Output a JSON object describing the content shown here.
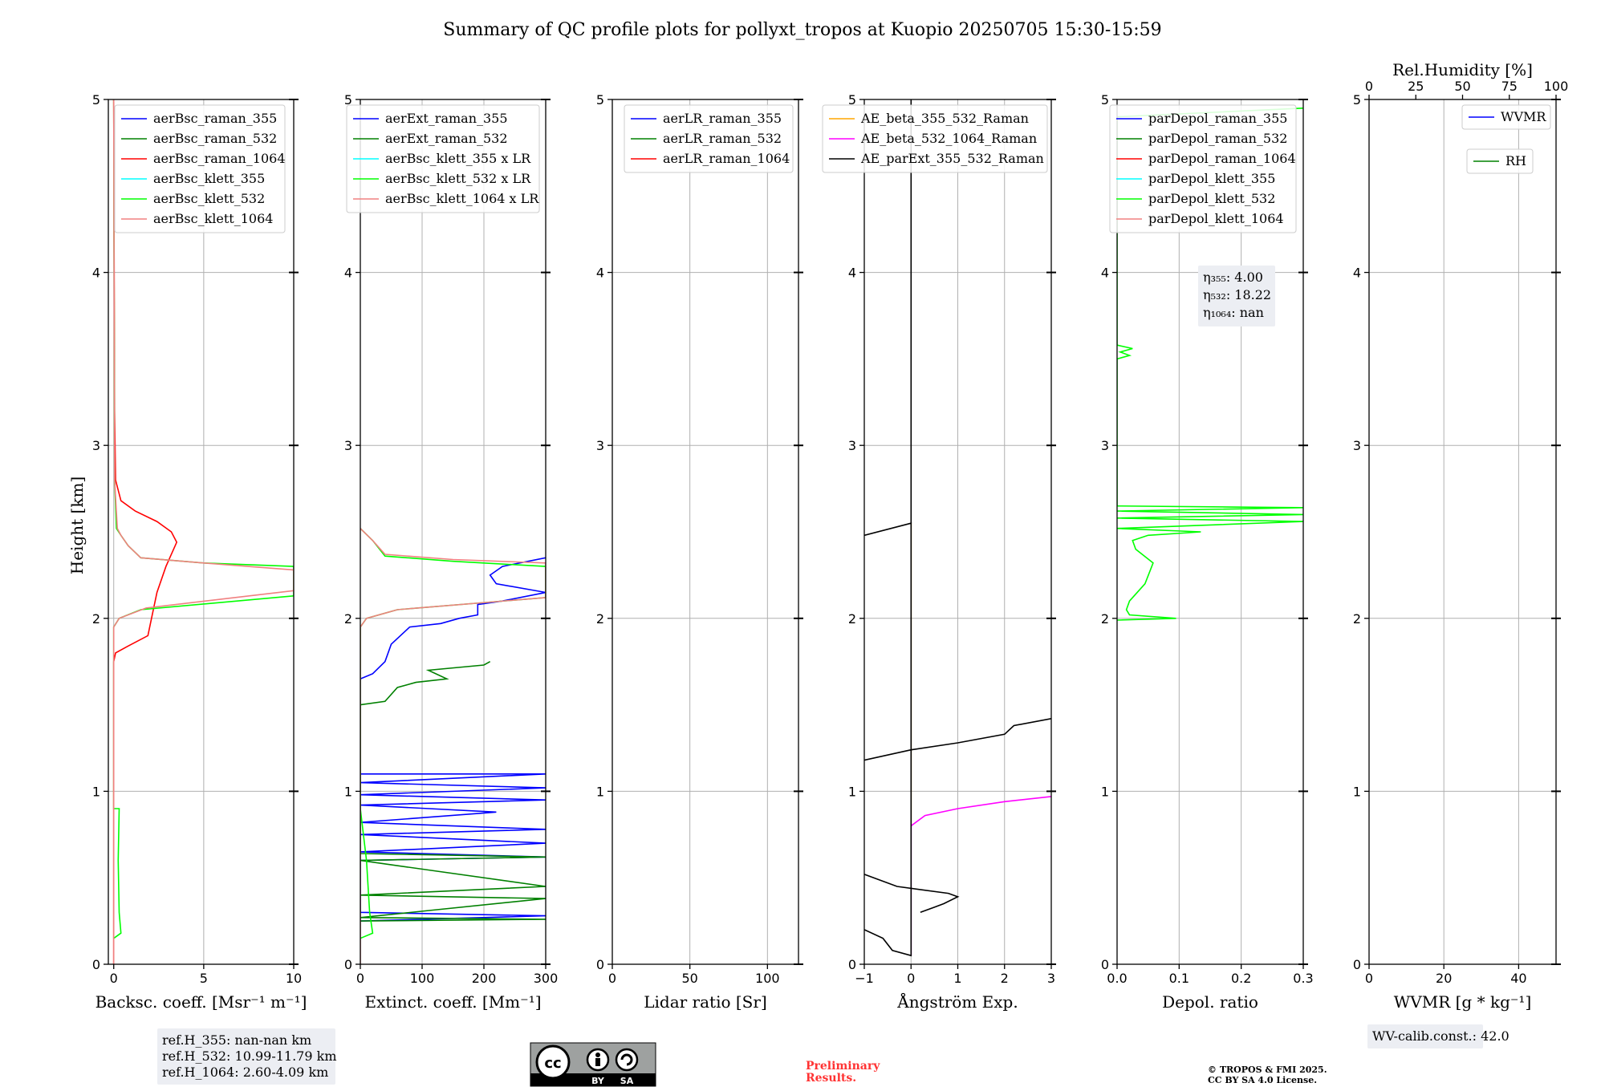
{
  "title": "Summary of QC profile plots for pollyxt_tropos at Kuopio 20250705 15:30-15:59",
  "ylabel": "Height [km]",
  "chart_data": [
    {
      "type": "line",
      "id": "bsc",
      "xlabel": "Backsc. coeff. [Msr⁻¹ m⁻¹]",
      "xlim": [
        -0.3,
        10
      ],
      "ylim": [
        0,
        5
      ],
      "xticks": [
        0,
        5,
        10
      ],
      "yticks": [
        0,
        1,
        2,
        3,
        4,
        5
      ],
      "legend": "top-right",
      "series": [
        {
          "name": "aerBsc_raman_355",
          "color": "#0000ff",
          "points": []
        },
        {
          "name": "aerBsc_raman_532",
          "color": "#008000",
          "points": []
        },
        {
          "name": "aerBsc_raman_1064",
          "color": "#ff0000",
          "points": [
            [
              0,
              0
            ],
            [
              0,
              1.75
            ],
            [
              0.1,
              1.8
            ],
            [
              0.8,
              1.84
            ],
            [
              1.9,
              1.9
            ],
            [
              2.1,
              2.0
            ],
            [
              2.4,
              2.15
            ],
            [
              2.9,
              2.3
            ],
            [
              3.5,
              2.44
            ],
            [
              3.2,
              2.5
            ],
            [
              2.4,
              2.56
            ],
            [
              1.2,
              2.62
            ],
            [
              0.4,
              2.68
            ],
            [
              0.1,
              2.8
            ],
            [
              0.05,
              3.2
            ],
            [
              0,
              5
            ]
          ]
        },
        {
          "name": "aerBsc_klett_355",
          "color": "#00ffff",
          "points": []
        },
        {
          "name": "aerBsc_klett_532",
          "color": "#00ff00",
          "points": [
            [
              0,
              0.15
            ],
            [
              0.4,
              0.18
            ],
            [
              0.3,
              0.3
            ],
            [
              0.25,
              0.6
            ],
            [
              0.3,
              0.9
            ],
            [
              0,
              0.9
            ],
            [
              0,
              1.95
            ],
            [
              0.3,
              2.0
            ],
            [
              1.5,
              2.05
            ],
            [
              10,
              2.13
            ],
            [
              10,
              2.3
            ],
            [
              5,
              2.32
            ],
            [
              1.5,
              2.35
            ],
            [
              0.8,
              2.42
            ],
            [
              0.4,
              2.48
            ],
            [
              0.15,
              2.52
            ],
            [
              0.05,
              2.8
            ],
            [
              0,
              5
            ]
          ]
        },
        {
          "name": "aerBsc_klett_1064",
          "color": "#f08080",
          "points": [
            [
              0,
              0
            ],
            [
              0,
              1.95
            ],
            [
              0.3,
              2.0
            ],
            [
              1.8,
              2.06
            ],
            [
              10,
              2.16
            ],
            [
              10,
              2.28
            ],
            [
              5,
              2.32
            ],
            [
              1.5,
              2.35
            ],
            [
              0.8,
              2.42
            ],
            [
              0.4,
              2.48
            ],
            [
              0.2,
              2.52
            ],
            [
              0.05,
              2.8
            ],
            [
              0,
              5
            ]
          ]
        }
      ],
      "info": [
        "ref.H_355: nan-nan km",
        "ref.H_532: 10.99-11.79 km",
        "ref.H_1064: 2.60-4.09 km"
      ]
    },
    {
      "type": "line",
      "id": "ext",
      "xlabel": "Extinct. coeff. [Mm⁻¹]",
      "xlim": [
        0,
        300
      ],
      "ylim": [
        0,
        5
      ],
      "xticks": [
        0,
        100,
        200,
        300
      ],
      "yticks": [
        0,
        1,
        2,
        3,
        4,
        5
      ],
      "legend": "top-right",
      "series": [
        {
          "name": "aerExt_raman_355",
          "color": "#0000ff",
          "points": [
            [
              0,
              0.25
            ],
            [
              300,
              0.28
            ],
            [
              0,
              0.3
            ],
            [
              0,
              0.6
            ],
            [
              300,
              0.62
            ],
            [
              0,
              0.65
            ],
            [
              300,
              0.7
            ],
            [
              0,
              0.75
            ],
            [
              300,
              0.78
            ],
            [
              0,
              0.82
            ],
            [
              220,
              0.88
            ],
            [
              0,
              0.92
            ],
            [
              300,
              0.95
            ],
            [
              0,
              0.98
            ],
            [
              300,
              1.02
            ],
            [
              0,
              1.05
            ],
            [
              300,
              1.1
            ],
            [
              0,
              1.1
            ],
            [
              0,
              1.65
            ],
            [
              20,
              1.68
            ],
            [
              40,
              1.75
            ],
            [
              50,
              1.85
            ],
            [
              80,
              1.95
            ],
            [
              130,
              1.97
            ],
            [
              160,
              2.0
            ],
            [
              190,
              2.02
            ],
            [
              190,
              2.08
            ],
            [
              230,
              2.1
            ],
            [
              300,
              2.15
            ],
            [
              220,
              2.2
            ],
            [
              210,
              2.25
            ],
            [
              230,
              2.3
            ],
            [
              300,
              2.35
            ]
          ]
        },
        {
          "name": "aerExt_raman_532",
          "color": "#008000",
          "points": [
            [
              0,
              0.25
            ],
            [
              300,
              0.26
            ],
            [
              0,
              0.27
            ],
            [
              300,
              0.38
            ],
            [
              0,
              0.4
            ],
            [
              300,
              0.45
            ],
            [
              0,
              0.6
            ],
            [
              300,
              0.62
            ],
            [
              0,
              0.64
            ],
            [
              0,
              1.5
            ],
            [
              40,
              1.52
            ],
            [
              60,
              1.6
            ],
            [
              90,
              1.63
            ],
            [
              140,
              1.65
            ],
            [
              110,
              1.7
            ],
            [
              200,
              1.73
            ],
            [
              210,
              1.75
            ]
          ]
        },
        {
          "name": "aerBsc_klett_355 x LR",
          "color": "#00ffff",
          "points": []
        },
        {
          "name": "aerBsc_klett_532 x LR",
          "color": "#00ff00",
          "points": [
            [
              0,
              0.15
            ],
            [
              20,
              0.18
            ],
            [
              15,
              0.3
            ],
            [
              10,
              0.6
            ],
            [
              0,
              0.9
            ],
            [
              0,
              1.95
            ],
            [
              10,
              2.0
            ],
            [
              60,
              2.05
            ],
            [
              300,
              2.12
            ],
            [
              300,
              2.3
            ],
            [
              150,
              2.33
            ],
            [
              40,
              2.36
            ],
            [
              20,
              2.45
            ],
            [
              0,
              2.52
            ]
          ]
        },
        {
          "name": "aerBsc_klett_1064 x LR",
          "color": "#f08080",
          "points": [
            [
              0,
              0
            ],
            [
              0,
              1.95
            ],
            [
              10,
              2.0
            ],
            [
              60,
              2.05
            ],
            [
              300,
              2.12
            ],
            [
              300,
              2.32
            ],
            [
              150,
              2.34
            ],
            [
              40,
              2.37
            ],
            [
              20,
              2.45
            ],
            [
              0,
              2.52
            ]
          ]
        }
      ]
    },
    {
      "type": "line",
      "id": "lr",
      "xlabel": "Lidar ratio [Sr]",
      "xlim": [
        0,
        120
      ],
      "ylim": [
        0,
        5
      ],
      "xticks": [
        0,
        50,
        100
      ],
      "yticks": [
        0,
        1,
        2,
        3,
        4,
        5
      ],
      "legend": "top-right",
      "series": [
        {
          "name": "aerLR_raman_355",
          "color": "#0000ff",
          "points": []
        },
        {
          "name": "aerLR_raman_532",
          "color": "#008000",
          "points": []
        },
        {
          "name": "aerLR_raman_1064",
          "color": "#ff0000",
          "points": []
        }
      ]
    },
    {
      "type": "line",
      "id": "ae",
      "xlabel": "Ångström Exp.",
      "xlim": [
        -1,
        3
      ],
      "ylim": [
        0,
        5
      ],
      "xticks": [
        -1,
        0,
        1,
        2,
        3
      ],
      "yticks": [
        0,
        1,
        2,
        3,
        4,
        5
      ],
      "legend": "top-left",
      "series": [
        {
          "name": "AE_beta_355_532_Raman",
          "color": "#ffa500",
          "points": [
            [
              0,
              0.8
            ],
            [
              0,
              2.55
            ]
          ]
        },
        {
          "name": "AE_beta_532_1064_Raman",
          "color": "#ff00ff",
          "points": [
            [
              0,
              0.05
            ],
            [
              0,
              0.8
            ],
            [
              0.3,
              0.86
            ],
            [
              1,
              0.9
            ],
            [
              2,
              0.94
            ],
            [
              3,
              0.97
            ]
          ]
        },
        {
          "name": "AE_parExt_355_532_Raman",
          "color": "#000000",
          "points": [
            [
              -1,
              0.2
            ],
            [
              -0.6,
              0.15
            ],
            [
              -0.4,
              0.08
            ],
            [
              0,
              0.05
            ],
            [
              0,
              2.55
            ],
            [
              -1,
              2.48
            ]
          ]
        },
        {
          "name": "",
          "color": "#000000",
          "points": [
            [
              -1,
              0.52
            ],
            [
              -0.3,
              0.45
            ],
            [
              0.8,
              0.41
            ],
            [
              1,
              0.39
            ],
            [
              0.7,
              0.35
            ],
            [
              0.5,
              0.33
            ],
            [
              0.2,
              0.3
            ]
          ]
        },
        {
          "name": "",
          "color": "#000000",
          "points": [
            [
              -1,
              1.18
            ],
            [
              0,
              1.24
            ],
            [
              1,
              1.28
            ],
            [
              2,
              1.33
            ],
            [
              2.2,
              1.38
            ],
            [
              3,
              1.42
            ]
          ]
        },
        {
          "name": "",
          "color": "#000000",
          "points": [
            [
              0,
              2.55
            ],
            [
              0,
              5
            ]
          ]
        }
      ]
    },
    {
      "type": "line",
      "id": "depol",
      "xlabel": "Depol. ratio",
      "xlim": [
        0,
        0.3
      ],
      "ylim": [
        0,
        5
      ],
      "xticks": [
        0.0,
        0.1,
        0.2,
        0.3
      ],
      "yticks": [
        0,
        1,
        2,
        3,
        4,
        5
      ],
      "legend": "top-left",
      "series": [
        {
          "name": "parDepol_raman_355",
          "color": "#0000ff",
          "points": []
        },
        {
          "name": "parDepol_raman_532",
          "color": "#008000",
          "points": []
        },
        {
          "name": "parDepol_raman_1064",
          "color": "#ff0000",
          "points": []
        },
        {
          "name": "parDepol_klett_355",
          "color": "#00ffff",
          "points": []
        },
        {
          "name": "parDepol_klett_532",
          "color": "#00ff00",
          "points": [
            [
              0,
              1.99
            ],
            [
              0.095,
              2.0
            ],
            [
              0.02,
              2.02
            ],
            [
              0.015,
              2.05
            ],
            [
              0.02,
              2.1
            ],
            [
              0.045,
              2.2
            ],
            [
              0.058,
              2.32
            ],
            [
              0.03,
              2.4
            ],
            [
              0.025,
              2.45
            ],
            [
              0.05,
              2.48
            ],
            [
              0.135,
              2.5
            ],
            [
              0,
              2.52
            ],
            [
              0.3,
              2.56
            ],
            [
              0,
              2.58
            ],
            [
              0.3,
              2.6
            ],
            [
              0,
              2.62
            ],
            [
              0.3,
              2.64
            ],
            [
              0,
              2.65
            ],
            [
              0,
              3.5
            ],
            [
              0.02,
              3.52
            ],
            [
              0.005,
              3.54
            ],
            [
              0.025,
              3.56
            ],
            [
              0,
              3.58
            ],
            [
              0,
              4.9
            ],
            [
              0.3,
              4.95
            ]
          ]
        },
        {
          "name": "parDepol_klett_1064",
          "color": "#f08080",
          "points": []
        }
      ],
      "info": [
        "η₃₅₅: 4.00",
        "η₅₃₂: 18.22",
        "η₁₀₆₄: nan"
      ]
    },
    {
      "type": "line",
      "id": "wv",
      "xlabel": "WVMR [g * kg⁻¹]",
      "xlim": [
        0,
        50
      ],
      "ylim": [
        0,
        5
      ],
      "xticks": [
        0,
        20,
        40
      ],
      "yticks": [
        0,
        1,
        2,
        3,
        4,
        5
      ],
      "top_axis": {
        "label": "Rel.Humidity [%]",
        "lim": [
          0,
          100
        ],
        "ticks": [
          0,
          25,
          50,
          75,
          100
        ]
      },
      "legend": "top-right",
      "series": [
        {
          "name": "WVMR",
          "color": "#0000ff",
          "points": []
        },
        {
          "name": "RH",
          "color": "#008000",
          "points": []
        }
      ],
      "info": [
        "WV-calib.const.: 42.0"
      ]
    }
  ],
  "footer": {
    "license_badge": {
      "cc": "cc",
      "by": "BY",
      "sa": "SA"
    },
    "preliminary": [
      "Preliminary",
      "Results."
    ],
    "copyright": [
      "© TROPOS & FMI 2025.",
      "CC BY SA 4.0 License."
    ]
  }
}
